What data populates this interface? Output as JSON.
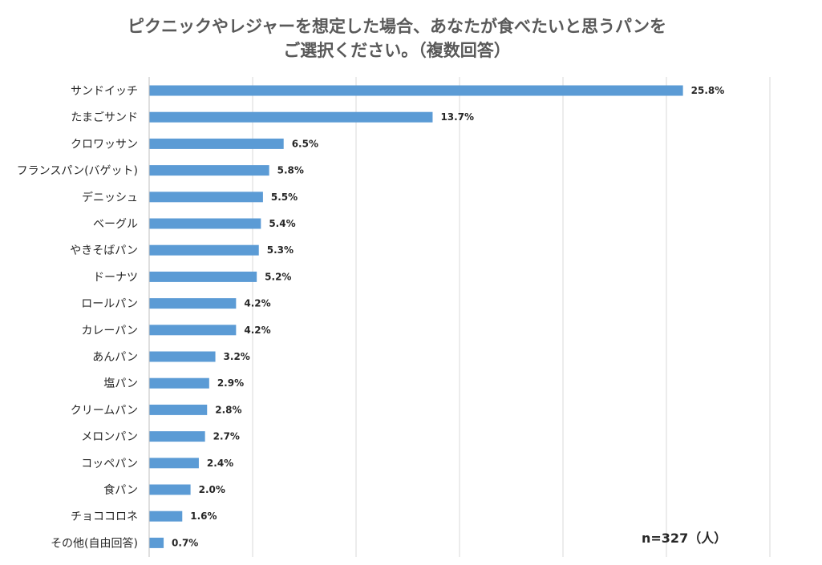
{
  "chart_data": {
    "type": "bar",
    "orientation": "horizontal",
    "title_line1": "ピクニックやレジャーを想定した場合、あなたが食べたいと思うパンを",
    "title_line2": "ご選択ください。（複数回答）",
    "categories": [
      "サンドイッチ",
      "たまごサンド",
      "クロワッサン",
      "フランスパン(バゲット)",
      "デニッシュ",
      "ベーグル",
      "やきそばパン",
      "ドーナツ",
      "ロールパン",
      "カレーパン",
      "あんパン",
      "塩パン",
      "クリームパン",
      "メロンパン",
      "コッペパン",
      "食パン",
      "チョココロネ",
      "その他(自由回答)"
    ],
    "values": [
      25.8,
      13.7,
      6.5,
      5.8,
      5.5,
      5.4,
      5.3,
      5.2,
      4.2,
      4.2,
      3.2,
      2.9,
      2.8,
      2.7,
      2.4,
      2.0,
      1.6,
      0.7
    ],
    "value_labels": [
      "25.8%",
      "13.7%",
      "6.5%",
      "5.8%",
      "5.5%",
      "5.4%",
      "5.3%",
      "5.2%",
      "4.2%",
      "4.2%",
      "3.2%",
      "2.9%",
      "2.8%",
      "2.7%",
      "2.4%",
      "2.0%",
      "1.6%",
      "0.7%"
    ],
    "xlim": [
      0,
      30
    ],
    "grid": "vertical",
    "bar_color": "#5b9bd5",
    "note": "n=327（人）"
  }
}
